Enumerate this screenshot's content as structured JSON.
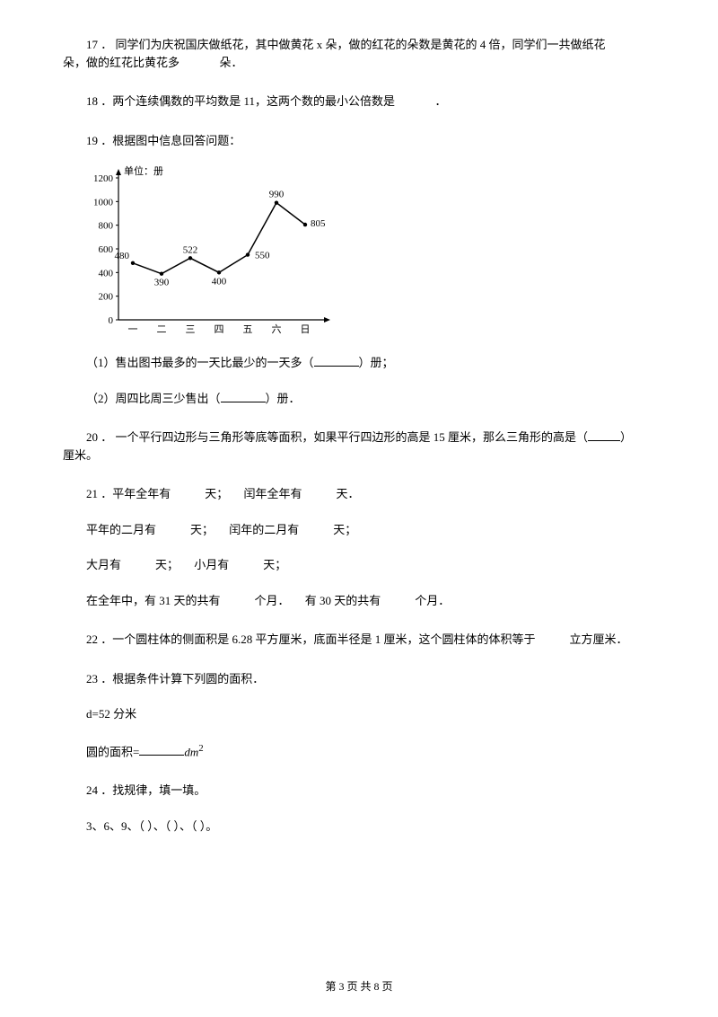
{
  "q17": {
    "text": "17 ．  同学们为庆祝国庆做纸花，其中做黄花 x 朵，做的红花的朵数是黄花的 4 倍，同学们一共做纸花",
    "line2_pre": "朵，做的红花比黄花多",
    "line2_post": "朵．"
  },
  "q18": {
    "pre": "18 ．两个连续偶数的平均数是 11，这两个数的最小公倍数是",
    "post": "．"
  },
  "q19": {
    "text": "19 ．根据图中信息回答问题：",
    "chart": {
      "type": "line",
      "unit_label": "单位：册",
      "categories": [
        "一",
        "二",
        "三",
        "四",
        "五",
        "六",
        "日"
      ],
      "values": [
        480,
        390,
        522,
        400,
        550,
        990,
        805
      ],
      "ylim": [
        0,
        1200
      ],
      "ytick_step": 200,
      "line_color": "#000000",
      "background_color": "#ffffff",
      "axis_color": "#000000",
      "tick_fontsize": 11,
      "label_fontsize": 11,
      "point_label_fontsize": 11
    },
    "sub1_pre": "（1）售出图书最多的一天比最少的一天多（",
    "sub1_post": "）册；",
    "sub2_pre": "（2）周四比周三少售出（",
    "sub2_post": "）册．"
  },
  "q20": {
    "pre": "20 ．  一个平行四边形与三角形等底等面积，如果平行四边形的高是 15 厘米，那么三角形的高是（",
    "post": "）",
    "line2": "厘米。"
  },
  "q21": {
    "l1_a": "21 ．平年全年有",
    "l1_b": "天；",
    "l1_c": "闰年全年有",
    "l1_d": "天．",
    "l2_a": "平年的二月有",
    "l2_b": "天；",
    "l2_c": "闰年的二月有",
    "l2_d": "天；",
    "l3_a": "大月有",
    "l3_b": "天；",
    "l3_c": "小月有",
    "l3_d": "天；",
    "l4_a": "在全年中，有 31 天的共有",
    "l4_b": "个月．",
    "l4_c": "有 30 天的共有",
    "l4_d": "个月．"
  },
  "q22": {
    "pre": "22 ．一个圆柱体的侧面积是 6.28 平方厘米，底面半径是 1 厘米，这个圆柱体的体积等于",
    "post": "立方厘米．"
  },
  "q23": {
    "text": "23 ．根据条件计算下列圆的面积．",
    "given": "d=52 分米",
    "area_label": "圆的面积=",
    "unit_dm": "dm",
    "unit_sup": "2"
  },
  "q24": {
    "text": "24 ．找规律，填一填。",
    "seq": "3、6、9、（     ）、（     ）、（     ）。"
  },
  "footer": "第 3 页 共 8 页"
}
